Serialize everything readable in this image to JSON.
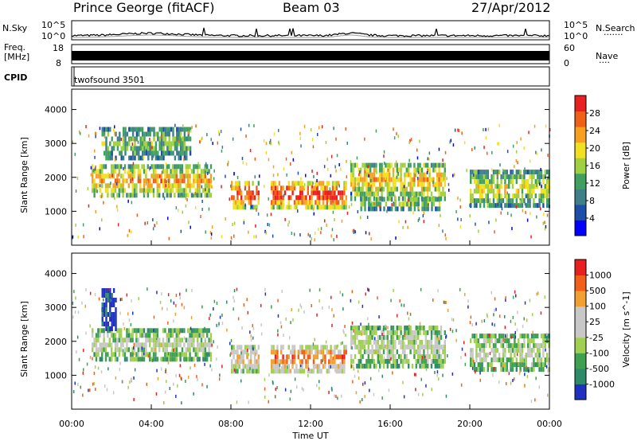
{
  "header": {
    "station": "Prince George (fitACF)",
    "beam": "Beam 03",
    "date": "27/Apr/2012"
  },
  "top_panels": {
    "nsky_label": "N.Sky",
    "nsky_ticks": [
      "10^5",
      "10^0"
    ],
    "nsearch_label": "N.Search",
    "nsearch_dots": "·······",
    "freq_label": "Freq.",
    "freq_unit": "[MHz]",
    "freq_ticks": [
      "18",
      "8"
    ],
    "nave_ticks": [
      "60",
      "0"
    ],
    "nave_label": "Nave",
    "nave_dots": "····",
    "cpid_label": "CPID",
    "cpid_value": "twofsound 3501"
  },
  "chart_data": [
    {
      "type": "heatmap",
      "ylabel": "Slant Range [km]",
      "ylim": [
        0,
        4600
      ],
      "yticks": [
        1000,
        2000,
        3000,
        4000
      ],
      "xlim": [
        "00:00",
        "24:00"
      ],
      "colorbar": {
        "label": "Power [dB]",
        "ticks": [
          "28",
          "24",
          "20",
          "16",
          "12",
          "8",
          "4"
        ],
        "colors": [
          "#0000ff",
          "#1e4fa8",
          "#3f7f8a",
          "#3fa060",
          "#9fd040",
          "#f0e020",
          "#f7a020",
          "#f06018",
          "#e82020"
        ]
      },
      "bands": [
        {
          "t0": 1.0,
          "t1": 7.0,
          "r0": 1400,
          "r1": 2250,
          "level": 0.75
        },
        {
          "t0": 1.5,
          "t1": 6.0,
          "r0": 2500,
          "r1": 3400,
          "level": 0.45
        },
        {
          "t0": 8.0,
          "t1": 9.4,
          "r0": 1050,
          "r1": 1800,
          "level": 0.95
        },
        {
          "t0": 10.0,
          "t1": 13.8,
          "r0": 1050,
          "r1": 1800,
          "level": 0.98
        },
        {
          "t0": 14.0,
          "t1": 18.8,
          "r0": 1300,
          "r1": 2400,
          "level": 0.7
        },
        {
          "t0": 14.5,
          "t1": 18.5,
          "r0": 1000,
          "r1": 1400,
          "level": 0.5
        },
        {
          "t0": 20.0,
          "t1": 24.0,
          "r0": 1100,
          "r1": 2100,
          "level": 0.6
        }
      ]
    },
    {
      "type": "heatmap",
      "ylabel": "Slant Range [km]",
      "ylim": [
        0,
        4600
      ],
      "yticks": [
        1000,
        2000,
        3000,
        4000
      ],
      "xticks": [
        "00:00",
        "04:00",
        "08:00",
        "12:00",
        "16:00",
        "20:00",
        "00:00"
      ],
      "xlabel": "Time UT",
      "colorbar": {
        "label": "Velocity [m s^-1]",
        "ticks": [
          "1000",
          "500",
          "100",
          "25",
          "-25",
          "-100",
          "-500",
          "-1000"
        ],
        "colors": [
          "#2030c0",
          "#2f8a6a",
          "#3fa050",
          "#9fd050",
          "#c8c8c8",
          "#c8c8c8",
          "#f0a030",
          "#f06018",
          "#e82020"
        ]
      },
      "bands": [
        {
          "t0": 1.0,
          "t1": 7.0,
          "r0": 1400,
          "r1": 2250,
          "level": 0.5
        },
        {
          "t0": 1.5,
          "t1": 2.2,
          "r0": 2300,
          "r1": 3500,
          "level": 0.05
        },
        {
          "t0": 8.0,
          "t1": 9.4,
          "r0": 1050,
          "r1": 1800,
          "level": 0.7
        },
        {
          "t0": 10.0,
          "t1": 13.8,
          "r0": 1050,
          "r1": 1800,
          "level": 0.85
        },
        {
          "t0": 14.0,
          "t1": 18.8,
          "r0": 1200,
          "r1": 2400,
          "level": 0.5
        },
        {
          "t0": 20.0,
          "t1": 24.0,
          "r0": 1100,
          "r1": 2100,
          "level": 0.5
        }
      ]
    }
  ]
}
